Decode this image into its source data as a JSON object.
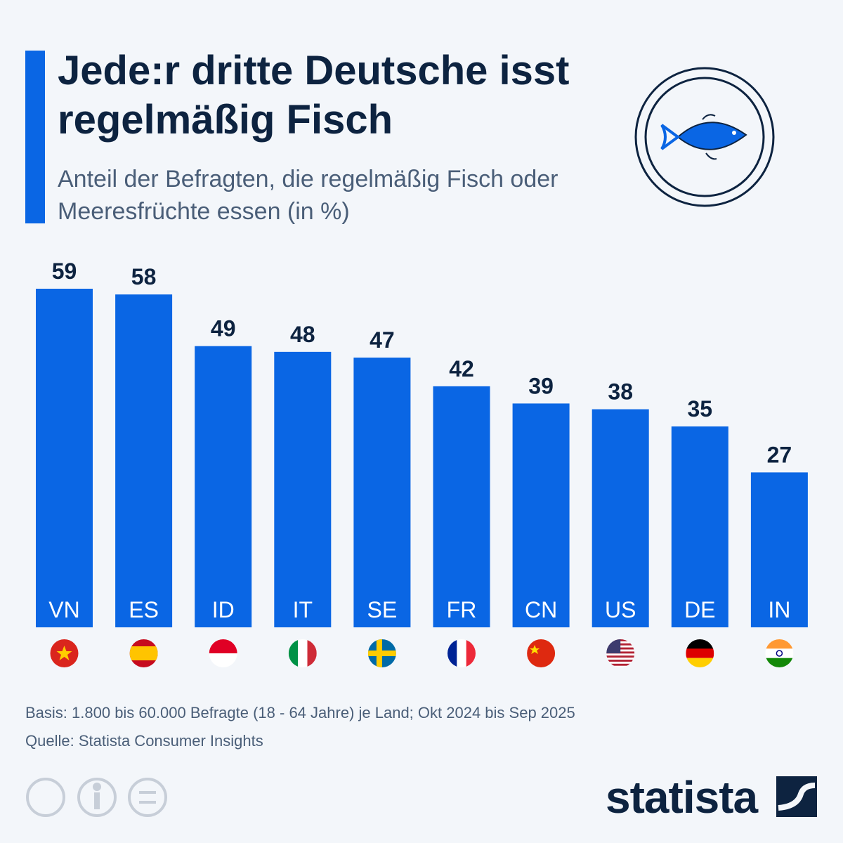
{
  "chart_data": {
    "type": "bar",
    "title": "Jede:r dritte Deutsche isst regelmäßig Fisch",
    "subtitle": "Anteil der Befragten, die regelmäßig Fisch oder Meeresfrüchte essen (in %)",
    "categories": [
      "VN",
      "ES",
      "ID",
      "IT",
      "SE",
      "FR",
      "CN",
      "US",
      "DE",
      "IN"
    ],
    "values": [
      59,
      58,
      49,
      48,
      47,
      42,
      39,
      38,
      35,
      27
    ],
    "color": "#0a66e4",
    "footnotes": [
      "Basis: 1.800 bis 60.000 Befragte (18 - 64 Jahre) je Land; Okt 2024 bis Sep 2025",
      "Quelle: Statista Consumer Insights"
    ],
    "brand": "statista"
  }
}
